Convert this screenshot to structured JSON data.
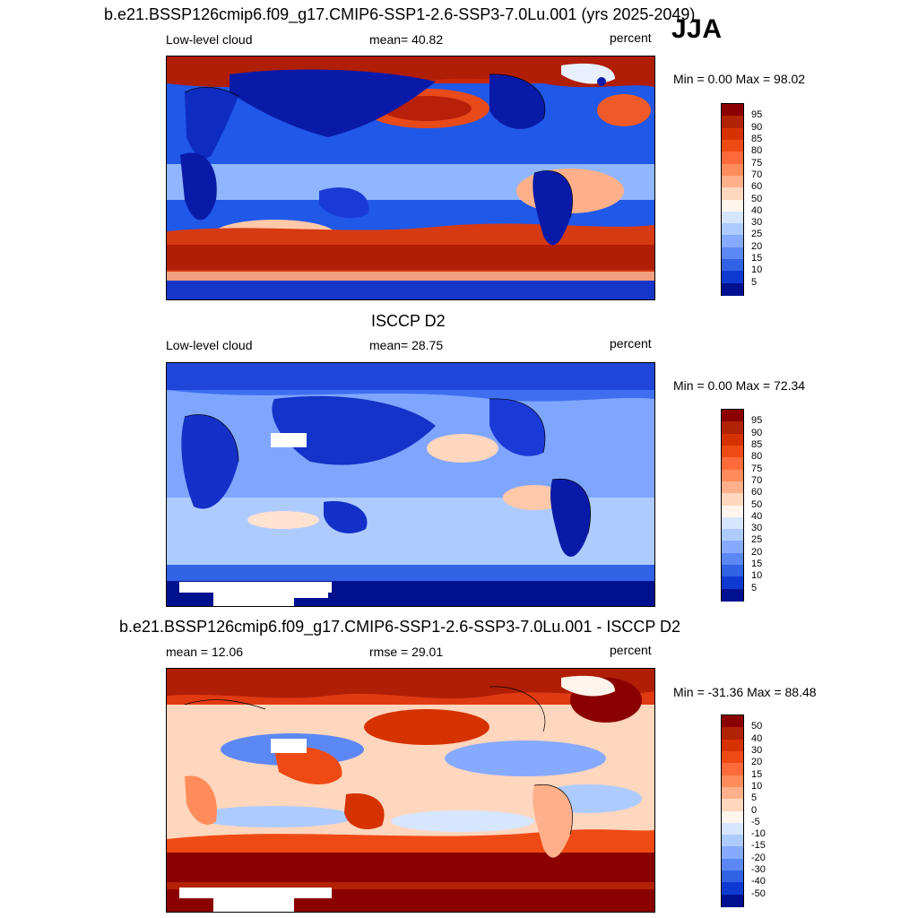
{
  "season": "JJA",
  "panels": [
    {
      "title": "b.e21.BSSP126cmip6.f09_g17.CMIP6-SSP1-2.6-SSP3-7.0Lu.001 (yrs 2025-2049)",
      "left_label": "Low-level cloud",
      "center_label": "mean=  40.82",
      "right_label": "percent",
      "minmax": "Min =   0.00 Max =  98.02",
      "colorbar": {
        "labels": [
          "95",
          "90",
          "85",
          "80",
          "75",
          "70",
          "60",
          "50",
          "40",
          "30",
          "25",
          "20",
          "15",
          "10",
          "5"
        ],
        "colors": [
          "#8b0000",
          "#b22204",
          "#d63200",
          "#f04a14",
          "#ff6a3a",
          "#ff8c5a",
          "#ffb08a",
          "#ffd6be",
          "#fff5ec",
          "#d6e6ff",
          "#aecbff",
          "#86aaff",
          "#5c88f5",
          "#3262e6",
          "#0f3ad2",
          "#00118f"
        ]
      }
    },
    {
      "title": "ISCCP D2",
      "left_label": "Low-level cloud",
      "center_label": "mean=  28.75",
      "right_label": "percent",
      "minmax": "Min =   0.00 Max =  72.34",
      "colorbar": {
        "labels": [
          "95",
          "90",
          "85",
          "80",
          "75",
          "70",
          "60",
          "50",
          "40",
          "30",
          "25",
          "20",
          "15",
          "10",
          "5"
        ],
        "colors": [
          "#8b0000",
          "#b22204",
          "#d63200",
          "#f04a14",
          "#ff6a3a",
          "#ff8c5a",
          "#ffb08a",
          "#ffd6be",
          "#fff5ec",
          "#d6e6ff",
          "#aecbff",
          "#86aaff",
          "#5c88f5",
          "#3262e6",
          "#0f3ad2",
          "#00118f"
        ]
      }
    },
    {
      "title": "b.e21.BSSP126cmip6.f09_g17.CMIP6-SSP1-2.6-SSP3-7.0Lu.001 - ISCCP D2",
      "left_label": "mean =  12.06",
      "center_label": "rmse =  29.01",
      "right_label": "percent",
      "minmax": "Min = -31.36 Max =  88.48",
      "colorbar": {
        "labels": [
          "50",
          "40",
          "30",
          "20",
          "15",
          "10",
          "5",
          "0",
          "-5",
          "-10",
          "-15",
          "-20",
          "-30",
          "-40",
          "-50"
        ],
        "colors": [
          "#8b0000",
          "#b22204",
          "#d63200",
          "#f04a14",
          "#ff6a3a",
          "#ff8c5a",
          "#ffb08a",
          "#ffd6be",
          "#fff5ec",
          "#d6e6ff",
          "#aecbff",
          "#86aaff",
          "#5c88f5",
          "#3262e6",
          "#0f3ad2",
          "#00118f"
        ]
      }
    }
  ]
}
